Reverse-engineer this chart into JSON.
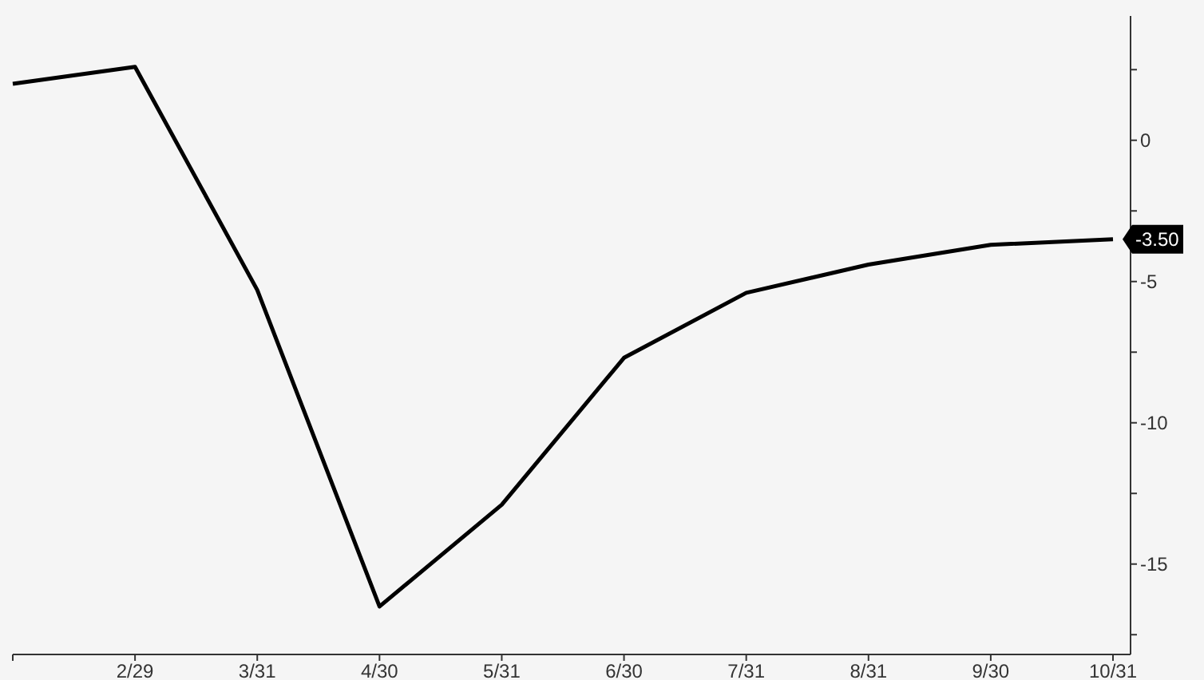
{
  "chart_data": {
    "type": "line",
    "categories": [
      null,
      "2/29",
      "3/31",
      "4/30",
      "5/31",
      "6/30",
      "7/31",
      "8/31",
      "9/30",
      "10/31"
    ],
    "series": [
      {
        "color": "#000000",
        "values": [
          2.0,
          2.6,
          -5.3,
          -16.5,
          -12.9,
          -7.7,
          -5.4,
          -4.4,
          -3.7,
          -3.5
        ],
        "value_labels": [
          null,
          null,
          null,
          null,
          null,
          null,
          null,
          null,
          null,
          "-3.50"
        ]
      }
    ],
    "ylim": [
      -18.2,
      4.4
    ],
    "yticks": [
      {
        "value": 2.5,
        "label": null
      },
      0,
      {
        "value": -2.5,
        "label": null
      },
      -5,
      {
        "value": -7.5,
        "label": null
      },
      -10,
      {
        "value": -12.5,
        "label": null
      },
      -15,
      {
        "value": -17.5,
        "label": null
      }
    ],
    "grid": false,
    "legend": false,
    "marker": "none",
    "line_style": "solid"
  }
}
